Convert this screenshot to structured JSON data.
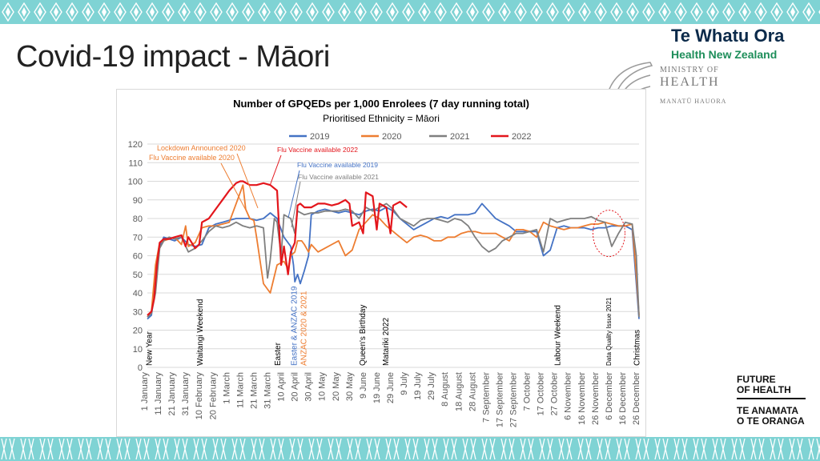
{
  "slide": {
    "title": "Covid-19 impact - Māori",
    "logo_line1": "Te Whatu Ora",
    "logo_line2": "Health New Zealand",
    "moh_line1": "MINISTRY OF",
    "moh_line2": "HEALTH",
    "moh_line3": "MANATŪ HAUORA",
    "foh_line1": "FUTURE",
    "foh_line2": "OF HEALTH",
    "foh_line3": "TE ANAMATA",
    "foh_line4": "O TE ORANGA"
  },
  "colors": {
    "band": "#7fd3d4",
    "s2019": "#4472c4",
    "s2020": "#ed7d31",
    "s2021": "#7f7f7f",
    "s2022": "#e3161c"
  },
  "chart_data": {
    "type": "line",
    "title": "Number of GPQEDs per 1,000 Enrolees (7 day running total)",
    "subtitle": "Prioritised Ethnicity = Māori",
    "ylim": [
      0,
      120
    ],
    "yticks": [
      0,
      10,
      20,
      30,
      40,
      50,
      60,
      70,
      80,
      90,
      100,
      110,
      120
    ],
    "x_domain": [
      0,
      360
    ],
    "categories": [
      "1 January",
      "11 January",
      "21 January",
      "31 January",
      "10 February",
      "20 February",
      "1 March",
      "11 March",
      "21 March",
      "31 March",
      "10 April",
      "20 April",
      "30 April",
      "10 May",
      "20 May",
      "30 May",
      "9 June",
      "19 June",
      "29 June",
      "9 July",
      "19 July",
      "29 July",
      "8 August",
      "18 August",
      "28 August",
      "7 September",
      "17 September",
      "27 September",
      "7 October",
      "17 October",
      "27 October",
      "6 November",
      "16 November",
      "26 November",
      "6 December",
      "16 December",
      "26 December"
    ],
    "legend": [
      "2019",
      "2020",
      "2021",
      "2022"
    ],
    "series": [
      {
        "name": "2019",
        "color": "#4472c4",
        "x": [
          0,
          3,
          6,
          9,
          12,
          16,
          20,
          25,
          30,
          35,
          40,
          45,
          50,
          55,
          60,
          65,
          70,
          75,
          80,
          85,
          90,
          95,
          100,
          105,
          107,
          108,
          110,
          112,
          115,
          118,
          120,
          125,
          130,
          135,
          140,
          145,
          150,
          155,
          160,
          165,
          170,
          175,
          180,
          185,
          190,
          195,
          200,
          205,
          210,
          215,
          220,
          225,
          230,
          235,
          240,
          245,
          250,
          255,
          260,
          265,
          270,
          275,
          280,
          285,
          290,
          295,
          300,
          305,
          310,
          315,
          320,
          325,
          330,
          335,
          340,
          345,
          350,
          355,
          360
        ],
        "y": [
          26,
          28,
          45,
          65,
          70,
          69,
          68,
          70,
          66,
          65,
          66,
          75,
          77,
          78,
          79,
          80,
          80,
          80,
          79,
          80,
          83,
          80,
          70,
          65,
          55,
          46,
          50,
          45,
          52,
          60,
          82,
          84,
          85,
          84,
          83,
          84,
          83,
          82,
          84,
          85,
          84,
          86,
          84,
          80,
          77,
          74,
          76,
          78,
          80,
          81,
          80,
          82,
          82,
          82,
          83,
          88,
          84,
          80,
          78,
          76,
          73,
          73,
          73,
          73,
          60,
          63,
          75,
          76,
          75,
          75,
          75,
          74,
          75,
          75,
          76,
          76,
          76,
          74,
          26
        ]
      },
      {
        "name": "2020",
        "color": "#ed7d31",
        "x": [
          0,
          3,
          6,
          9,
          12,
          16,
          20,
          25,
          28,
          30,
          35,
          40,
          45,
          50,
          55,
          60,
          65,
          70,
          72,
          75,
          78,
          80,
          85,
          90,
          95,
          100,
          103,
          105,
          108,
          110,
          113,
          115,
          118,
          120,
          125,
          130,
          135,
          140,
          145,
          150,
          155,
          160,
          165,
          170,
          175,
          180,
          185,
          190,
          195,
          200,
          205,
          210,
          215,
          220,
          225,
          230,
          235,
          240,
          245,
          250,
          255,
          260,
          265,
          270,
          275,
          280,
          285,
          290,
          295,
          300,
          305,
          310,
          315,
          320,
          325,
          330,
          335,
          340,
          345,
          350,
          355,
          358,
          360
        ],
        "y": [
          27,
          30,
          55,
          67,
          68,
          69,
          70,
          66,
          76,
          65,
          67,
          75,
          76,
          76,
          77,
          78,
          88,
          98,
          85,
          80,
          79,
          70,
          45,
          40,
          55,
          57,
          53,
          60,
          62,
          68,
          68,
          66,
          62,
          66,
          62,
          64,
          66,
          68,
          60,
          63,
          74,
          78,
          82,
          80,
          76,
          73,
          70,
          67,
          70,
          71,
          70,
          68,
          68,
          70,
          70,
          72,
          73,
          73,
          72,
          72,
          72,
          70,
          68,
          74,
          74,
          73,
          70,
          78,
          76,
          75,
          74,
          75,
          75,
          76,
          77,
          77,
          78,
          77,
          76,
          76,
          77,
          50,
          28
        ]
      },
      {
        "name": "2021",
        "color": "#7f7f7f",
        "x": [
          0,
          3,
          6,
          9,
          12,
          16,
          20,
          25,
          30,
          35,
          40,
          45,
          50,
          55,
          60,
          65,
          70,
          75,
          80,
          85,
          88,
          90,
          93,
          95,
          98,
          100,
          105,
          108,
          110,
          115,
          120,
          125,
          130,
          135,
          140,
          145,
          150,
          155,
          160,
          165,
          170,
          175,
          180,
          185,
          190,
          195,
          200,
          205,
          210,
          215,
          220,
          225,
          230,
          235,
          240,
          245,
          250,
          255,
          260,
          265,
          270,
          275,
          280,
          285,
          290,
          295,
          300,
          305,
          310,
          315,
          320,
          325,
          330,
          335,
          340,
          345,
          350,
          355,
          358,
          360
        ],
        "y": [
          27,
          29,
          40,
          64,
          68,
          70,
          69,
          70,
          62,
          64,
          68,
          73,
          76,
          75,
          76,
          78,
          76,
          75,
          76,
          75,
          48,
          58,
          80,
          78,
          60,
          82,
          80,
          72,
          84,
          82,
          83,
          83,
          84,
          84,
          84,
          85,
          84,
          80,
          86,
          84,
          86,
          88,
          85,
          80,
          78,
          76,
          79,
          80,
          80,
          79,
          78,
          80,
          79,
          76,
          70,
          65,
          62,
          64,
          68,
          70,
          72,
          72,
          73,
          74,
          62,
          80,
          78,
          79,
          80,
          80,
          80,
          81,
          79,
          78,
          65,
          72,
          78,
          77,
          60,
          27
        ]
      },
      {
        "name": "2022",
        "color": "#e3161c",
        "x": [
          0,
          3,
          5,
          7,
          9,
          12,
          16,
          20,
          25,
          28,
          30,
          35,
          38,
          40,
          45,
          50,
          55,
          60,
          65,
          68,
          70,
          75,
          80,
          85,
          90,
          95,
          98,
          100,
          103,
          105,
          108,
          110,
          112,
          115,
          120,
          125,
          130,
          135,
          140,
          145,
          148,
          150,
          155,
          158,
          160,
          165,
          168,
          170,
          175,
          178,
          180,
          185,
          190
        ],
        "y": [
          28,
          30,
          37,
          55,
          67,
          69,
          69,
          70,
          71,
          65,
          70,
          64,
          66,
          78,
          80,
          85,
          90,
          95,
          99,
          100,
          100,
          98,
          98,
          99,
          98,
          95,
          55,
          65,
          50,
          62,
          67,
          87,
          88,
          86,
          86,
          88,
          88,
          87,
          88,
          90,
          88,
          76,
          78,
          72,
          94,
          92,
          74,
          88,
          86,
          72,
          87,
          89,
          86
        ]
      }
    ],
    "annotations": [
      {
        "text": "Lockdown Announced 2020",
        "color": "#ed7d31"
      },
      {
        "text": "Flu Vaccine available 2020",
        "color": "#ed7d31"
      },
      {
        "text": "Flu Vaccine available  2022",
        "color": "#e3161c"
      },
      {
        "text": "Flu Vaccine available  2019",
        "color": "#4472c4"
      },
      {
        "text": "Flu Vaccine available  2021",
        "color": "#7f7f7f"
      }
    ],
    "event_labels": [
      {
        "text": "New Year",
        "x": 1,
        "color": "#000"
      },
      {
        "text": "Waitangi Weekend",
        "x": 38,
        "color": "#000"
      },
      {
        "text": "Easter",
        "x": 95,
        "color": "#000"
      },
      {
        "text": "Easter & ANZAC 2019",
        "x": 107,
        "color": "#4472c4"
      },
      {
        "text": "ANZAC  2020 & 2021",
        "x": 114,
        "color": "#ed7d31"
      },
      {
        "text": "Queen's Birthday",
        "x": 157,
        "color": "#000"
      },
      {
        "text": "Matariki 2022",
        "x": 174,
        "color": "#000"
      },
      {
        "text": "Labour Weekend",
        "x": 300,
        "color": "#000"
      },
      {
        "text": "Data Quality Issue 2021",
        "x": 337,
        "color": "#000"
      },
      {
        "text": "Christmas",
        "x": 358,
        "color": "#000"
      }
    ]
  }
}
